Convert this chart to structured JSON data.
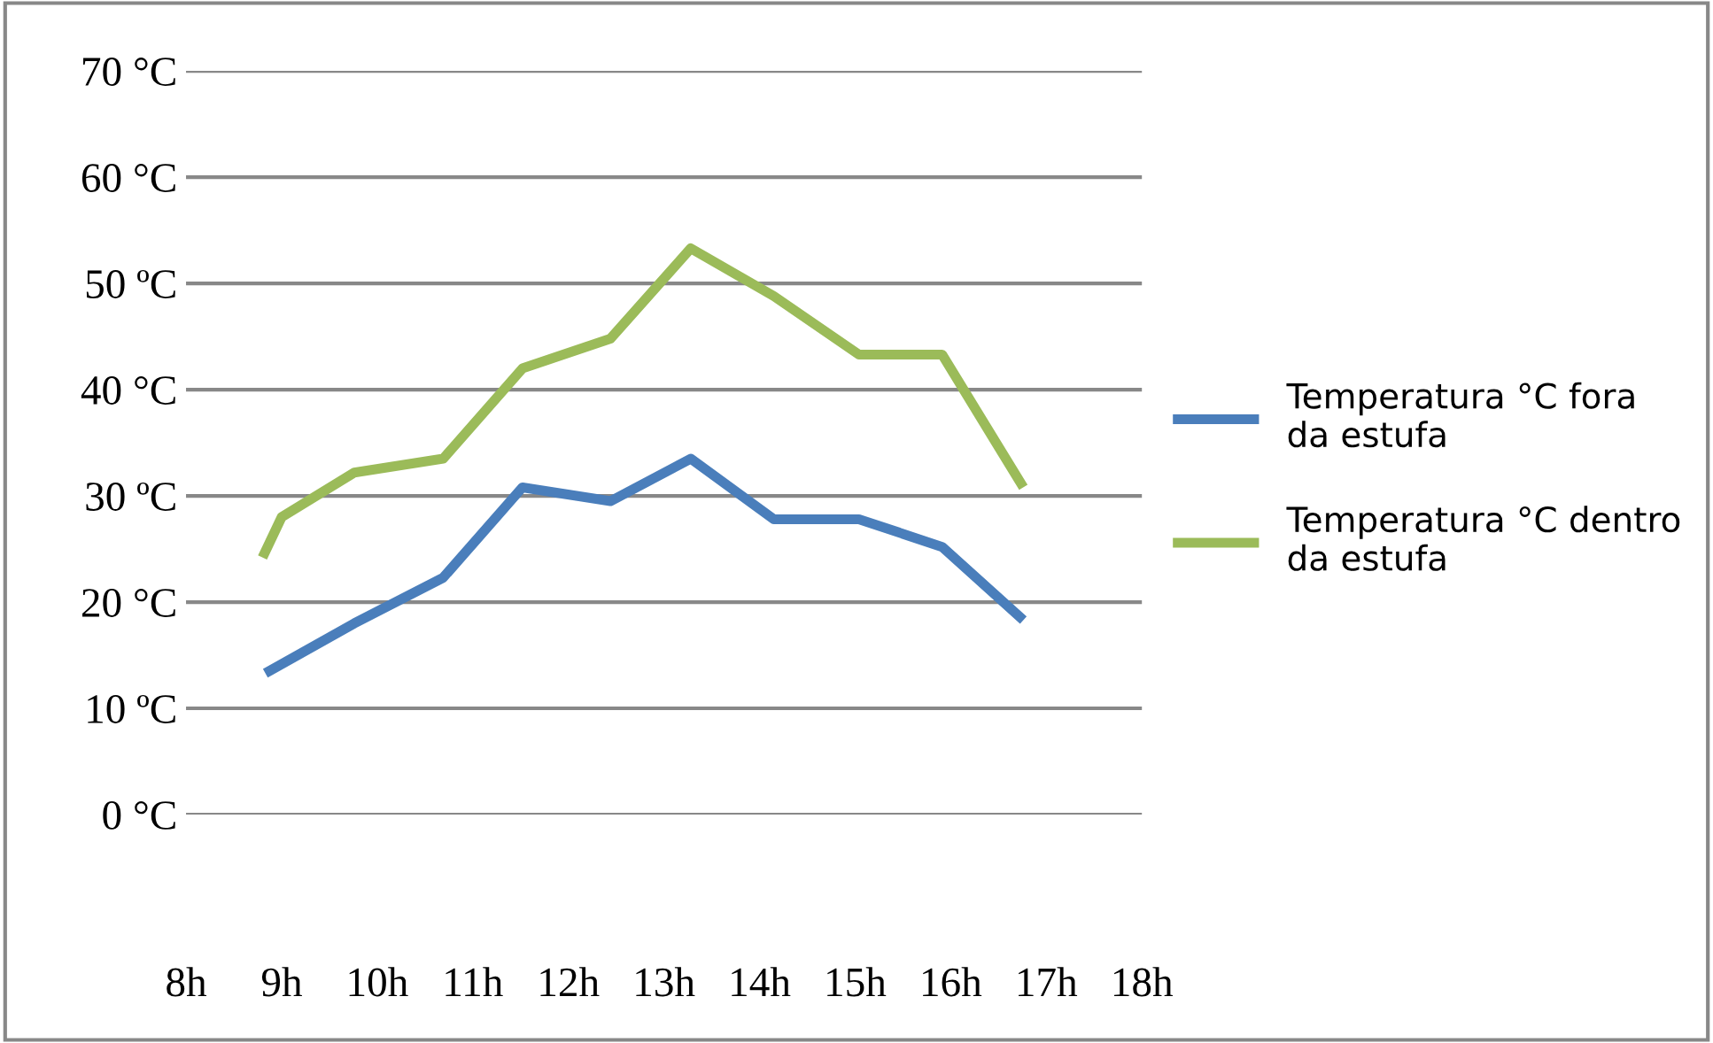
{
  "chart_data": {
    "type": "line",
    "x": [
      8.83,
      9.76,
      10.69,
      11.52,
      12.44,
      13.28,
      14.15,
      15.04,
      15.91,
      16.76
    ],
    "series": [
      {
        "name": "Temperatura °C fora da estufa",
        "color": "#4a7ebb",
        "values": [
          13.3,
          18,
          22.3,
          30.8,
          29.5,
          33.5,
          27.8,
          27.8,
          25.2,
          18.3
        ]
      },
      {
        "name": "Temperatura °C dentro da estufa",
        "color": "#9bbb59",
        "x": [
          8.8,
          9.0,
          9.76,
          10.69,
          11.52,
          12.44,
          13.28,
          14.15,
          15.04,
          15.91,
          16.76
        ],
        "values": [
          24.2,
          28,
          32.2,
          33.5,
          42,
          44.8,
          53.3,
          48.8,
          43.3,
          43.3,
          30.8
        ]
      }
    ],
    "xlim": [
      8,
      18
    ],
    "xticks": [
      {
        "value": 8,
        "label": "8h"
      },
      {
        "value": 9,
        "label": "9h"
      },
      {
        "value": 10,
        "label": "10h"
      },
      {
        "value": 11,
        "label": "11h"
      },
      {
        "value": 12,
        "label": "12h"
      },
      {
        "value": 13,
        "label": "13h"
      },
      {
        "value": 14,
        "label": "14h"
      },
      {
        "value": 15,
        "label": "15h"
      },
      {
        "value": 16,
        "label": "16h"
      },
      {
        "value": 17,
        "label": "17h"
      },
      {
        "value": 18,
        "label": "18h"
      }
    ],
    "ylim": [
      0,
      70
    ],
    "yticks": [
      {
        "value": 0,
        "label": "0 °C"
      },
      {
        "value": 10,
        "label": "10 ºC"
      },
      {
        "value": 20,
        "label": "20 °C"
      },
      {
        "value": 30,
        "label": "30 ºC"
      },
      {
        "value": 40,
        "label": "40 °C"
      },
      {
        "value": 50,
        "label": "50 ºC"
      },
      {
        "value": 60,
        "label": "60 °C"
      },
      {
        "value": 70,
        "label": "70 °C"
      }
    ],
    "grid": "y",
    "legend": "right",
    "marker": "none",
    "line_style": "solid"
  }
}
